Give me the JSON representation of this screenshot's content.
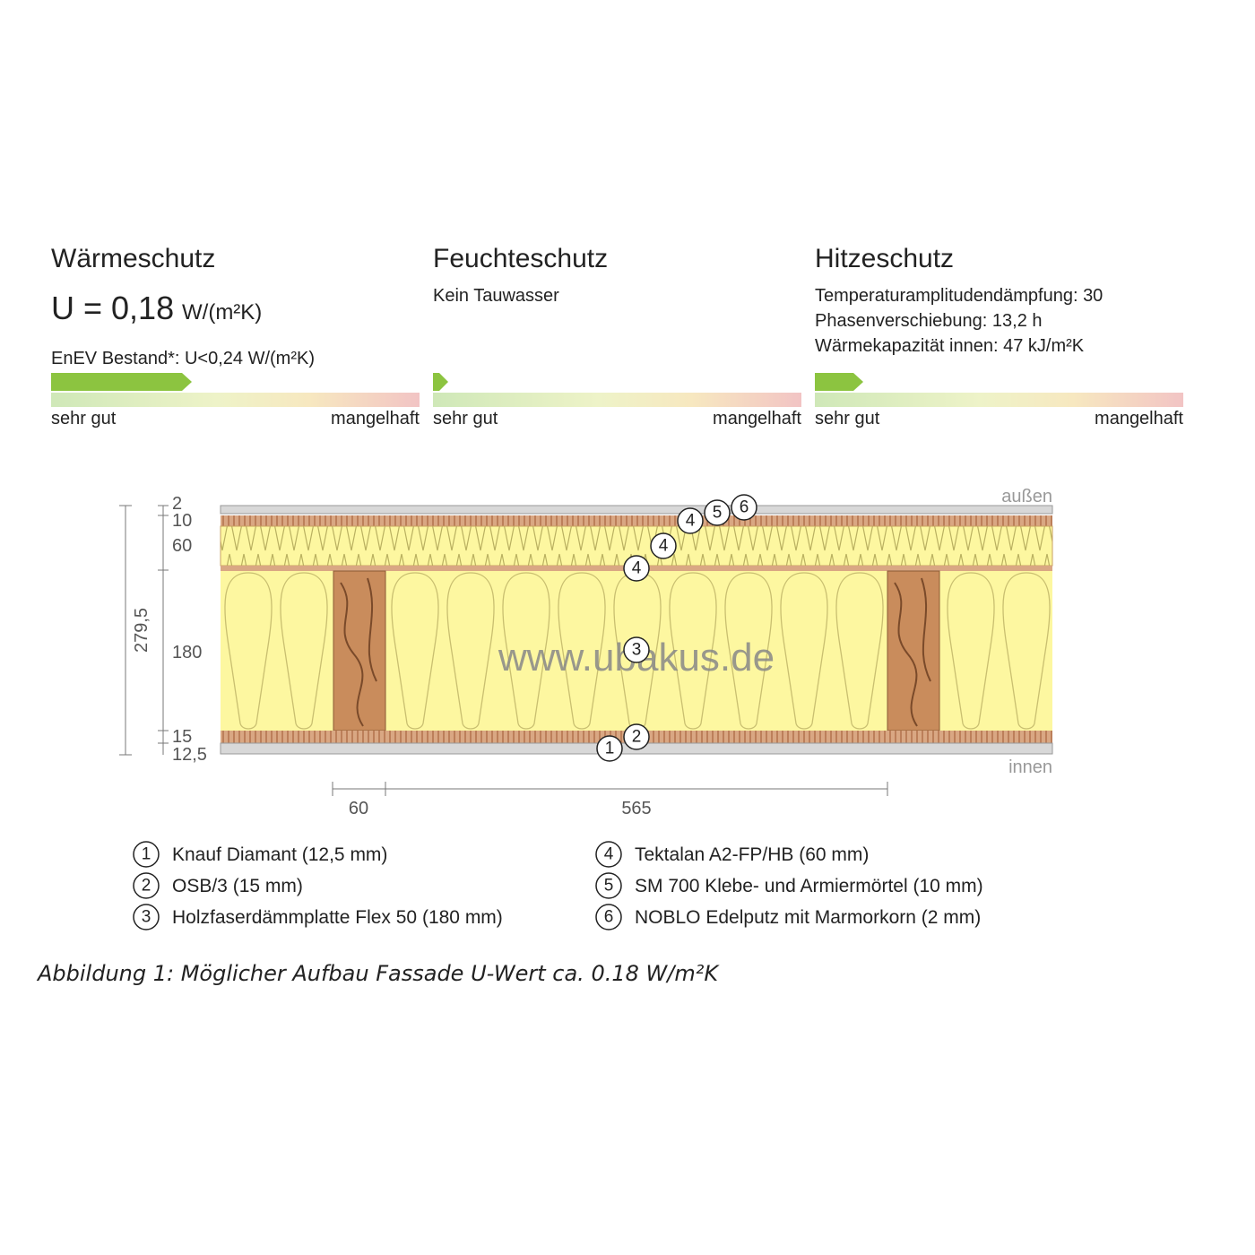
{
  "panels": [
    {
      "title": "Wärmeschutz",
      "value": "U = 0,18",
      "unit": "W/(m²K)",
      "note": "EnEV Bestand*: U<0,24 W/(m²K)",
      "scale_left": "sehr gut",
      "scale_right": "mangelhaft"
    },
    {
      "title": "Feuchteschutz",
      "lines": [
        "Kein Tauwasser"
      ],
      "scale_left": "sehr gut",
      "scale_right": "mangelhaft"
    },
    {
      "title": "Hitzeschutz",
      "lines": [
        "Temperaturamplitudendämpfung: 30",
        "Phasenverschiebung: 13,2 h",
        "Wärmekapazität innen: 47 kJ/m²K"
      ],
      "scale_left": "sehr gut",
      "scale_right": "mangelhaft"
    }
  ],
  "diagram": {
    "outside": "außen",
    "inside": "innen",
    "watermark": "www.ubakus.de",
    "thicknesses": [
      "2",
      "10",
      "60",
      "180",
      "15",
      "12,5"
    ],
    "total": "279,5",
    "widths": [
      "60",
      "565"
    ],
    "markers": [
      "6",
      "5",
      "4",
      "4",
      "4",
      "3",
      "2",
      "1"
    ]
  },
  "legend": [
    {
      "number": "1",
      "text": "Knauf Diamant (12,5 mm)"
    },
    {
      "number": "2",
      "text": "OSB/3 (15 mm)"
    },
    {
      "number": "3",
      "text": "Holzfaserdämmplatte Flex 50 (180 mm)"
    },
    {
      "number": "4",
      "text": "Tektalan A2-FP/HB (60 mm)"
    },
    {
      "number": "5",
      "text": "SM 700 Klebe- und Armiermörtel (10 mm)"
    },
    {
      "number": "6",
      "text": "NOBLO Edelputz mit Marmorkorn (2 mm)"
    }
  ],
  "caption": "Abbildung 1: Möglicher Aufbau Fassade U-Wert ca. 0.18 W/m²K"
}
